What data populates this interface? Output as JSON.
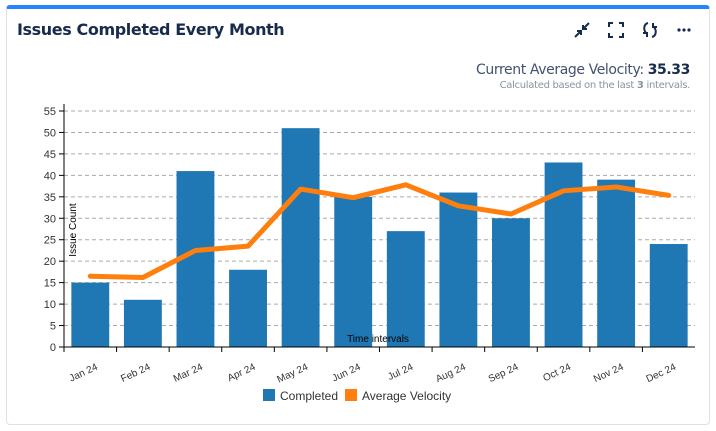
{
  "header": {
    "title": "Issues Completed Every Month",
    "icons": [
      "minimize-icon",
      "fullscreen-icon",
      "refresh-icon",
      "more-icon"
    ]
  },
  "velocity": {
    "label": "Current Average Velocity:",
    "value": "35.33",
    "sub_prefix": "Calculated based on the last",
    "sub_count": "3",
    "sub_suffix": "intervals."
  },
  "chart_data": {
    "type": "bar",
    "title": "",
    "xlabel": "Time intervals",
    "ylabel": "Issue Count",
    "ylim": [
      0,
      55
    ],
    "yticks": [
      0,
      5,
      10,
      15,
      20,
      25,
      30,
      35,
      40,
      45,
      50,
      55
    ],
    "grid": true,
    "legend": "bottom",
    "categories": [
      "Jan 24",
      "Feb 24",
      "Mar 24",
      "Apr 24",
      "May 24",
      "Jun 24",
      "Jul 24",
      "Aug 24",
      "Sep 24",
      "Oct 24",
      "Nov 24",
      "Dec 24"
    ],
    "series": [
      {
        "name": "Completed",
        "type": "bar",
        "color": "#1f77b4",
        "values": [
          15,
          11,
          41,
          18,
          51,
          35,
          27,
          36,
          30,
          43,
          39,
          24
        ]
      },
      {
        "name": "Average Velocity",
        "type": "line",
        "color": "#ff7f0e",
        "values": [
          16.5,
          16.2,
          22.5,
          23.5,
          36.8,
          34.8,
          37.8,
          32.9,
          31,
          36.4,
          37.3,
          35.33
        ]
      }
    ]
  }
}
